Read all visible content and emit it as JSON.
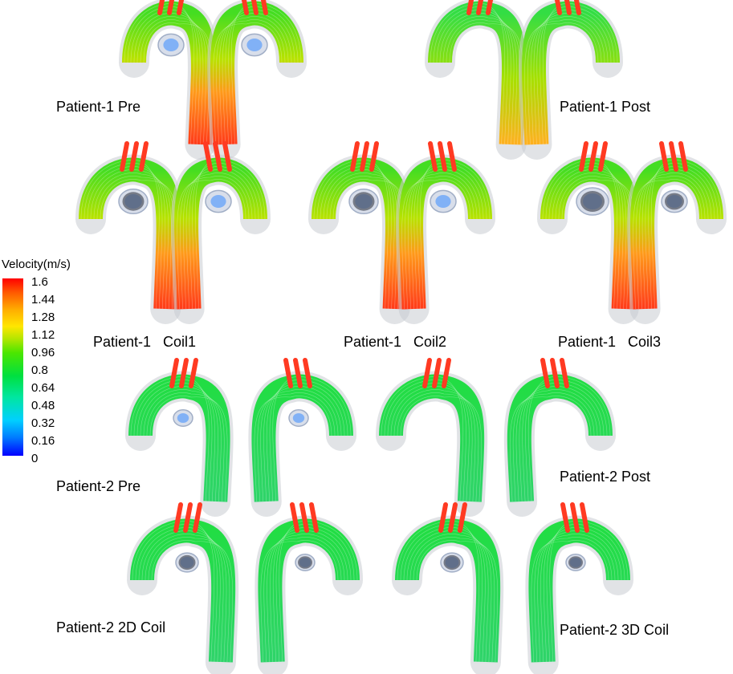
{
  "legend": {
    "title": "Velocity(m/s)",
    "ticks": [
      "1.6",
      "1.44",
      "1.28",
      "1.12",
      "0.96",
      "0.8",
      "0.64",
      "0.48",
      "0.32",
      "0.16",
      "0"
    ]
  },
  "panels": [
    {
      "label": "Patient-1 Pre"
    },
    {
      "label": "Patient-1 Post"
    },
    {
      "label": "Patient-1   Coil1"
    },
    {
      "label": "Patient-1   Coil2"
    },
    {
      "label": "Patient-1   Coil3"
    },
    {
      "label": "Patient-2 Pre"
    },
    {
      "label": "Patient-2 Post"
    },
    {
      "label": "Patient-2 2D Coil"
    },
    {
      "label": "Patient-2 3D Coil"
    }
  ]
}
